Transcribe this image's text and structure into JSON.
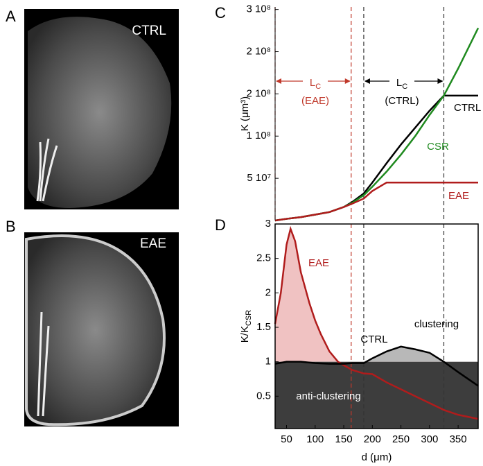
{
  "panels": [
    "A",
    "B",
    "C",
    "D"
  ],
  "images": [
    {
      "label": "CTRL"
    },
    {
      "label": "EAE"
    }
  ],
  "chart_data": [
    {
      "type": "line",
      "ylabel": "K (μm³)",
      "xlim": [
        30,
        385
      ],
      "ylim": [
        0,
        253000000
      ],
      "yticks": [
        {
          "value": 250000000,
          "label": "3 10⁸"
        },
        {
          "value": 200000000,
          "label": "2 10⁸"
        },
        {
          "value": 150000000,
          "label": "2 10⁸"
        },
        {
          "value": 100000000,
          "label": "1 10⁸"
        },
        {
          "value": 50000000,
          "label": "5 10⁷"
        }
      ],
      "vlines": [
        {
          "x": 30,
          "color": "#c0392b"
        },
        {
          "x": 163,
          "color": "#c0392b"
        },
        {
          "x": 185,
          "color": "#333333"
        },
        {
          "x": 325,
          "color": "#333333"
        }
      ],
      "annotations": [
        {
          "text": "L",
          "sub": "C",
          "line2": "(EAE)",
          "color": "#c0392b"
        },
        {
          "text": "L",
          "sub": "C",
          "line2": "(CTRL)",
          "color": "#000000"
        }
      ],
      "series": [
        {
          "name": "CTRL",
          "color": "#000000",
          "x": [
            30,
            50,
            75,
            100,
            125,
            150,
            165,
            185,
            200,
            225,
            250,
            275,
            300,
            325,
            350,
            385
          ],
          "values": [
            0,
            2000000,
            4000000,
            7000000,
            10000000,
            16000000,
            22000000,
            32000000,
            45000000,
            68000000,
            90000000,
            110000000,
            130000000,
            148000000,
            148000000,
            148000000
          ]
        },
        {
          "name": "CSR",
          "color": "#1f8a1f",
          "x": [
            30,
            50,
            75,
            100,
            125,
            150,
            165,
            185,
            200,
            225,
            250,
            275,
            300,
            325,
            350,
            385
          ],
          "values": [
            0,
            2000000,
            4000000,
            7000000,
            10000000,
            16000000,
            21000000,
            30000000,
            40000000,
            58000000,
            78000000,
            100000000,
            125000000,
            148000000,
            180000000,
            228000000
          ]
        },
        {
          "name": "EAE",
          "color": "#b01c1c",
          "x": [
            30,
            50,
            75,
            100,
            125,
            150,
            165,
            185,
            200,
            225,
            250,
            275,
            300,
            325,
            350,
            385
          ],
          "values": [
            0,
            2000000,
            4000000,
            7000000,
            10000000,
            16000000,
            20000000,
            26000000,
            35000000,
            45000000,
            45000000,
            45000000,
            45000000,
            45000000,
            45000000,
            45000000
          ]
        }
      ]
    },
    {
      "type": "line",
      "xlabel": "d (μm)",
      "ylabel": "K/K",
      "ylabel_sub": "CSR",
      "xlim": [
        30,
        385
      ],
      "ylim": [
        0.03,
        3
      ],
      "xticks": [
        50,
        100,
        150,
        200,
        250,
        300,
        350
      ],
      "yticks": [
        0.5,
        1,
        1.5,
        2,
        2.5,
        3
      ],
      "baseline": 1,
      "baseline_color": "#3d3d3d",
      "vlines": [
        {
          "x": 163,
          "color": "#c0392b"
        },
        {
          "x": 185,
          "color": "#333333"
        },
        {
          "x": 325,
          "color": "#333333"
        }
      ],
      "annotations": [
        {
          "text": "clustering",
          "color": "#000000"
        },
        {
          "text": "anti-clustering",
          "color": "#ffffff"
        }
      ],
      "series": [
        {
          "name": "EAE",
          "color": "#b01c1c",
          "fill": "#f0c2c2",
          "x": [
            30,
            40,
            50,
            57,
            65,
            75,
            90,
            100,
            110,
            125,
            140,
            150,
            165,
            185,
            200,
            225,
            250,
            275,
            300,
            325,
            350,
            385
          ],
          "values": [
            1.55,
            2.0,
            2.7,
            2.93,
            2.75,
            2.3,
            1.85,
            1.6,
            1.4,
            1.15,
            1.0,
            0.95,
            0.88,
            0.83,
            0.82,
            0.7,
            0.6,
            0.5,
            0.4,
            0.3,
            0.23,
            0.17
          ]
        },
        {
          "name": "CTRL",
          "color": "#000000",
          "fill": "#b8b8b8",
          "x": [
            30,
            50,
            75,
            100,
            125,
            150,
            165,
            185,
            200,
            225,
            250,
            275,
            300,
            325,
            350,
            385
          ],
          "values": [
            0.97,
            1.0,
            1.0,
            0.98,
            0.97,
            0.97,
            0.98,
            0.98,
            1.05,
            1.15,
            1.22,
            1.18,
            1.13,
            1.0,
            0.85,
            0.65
          ]
        }
      ]
    }
  ]
}
